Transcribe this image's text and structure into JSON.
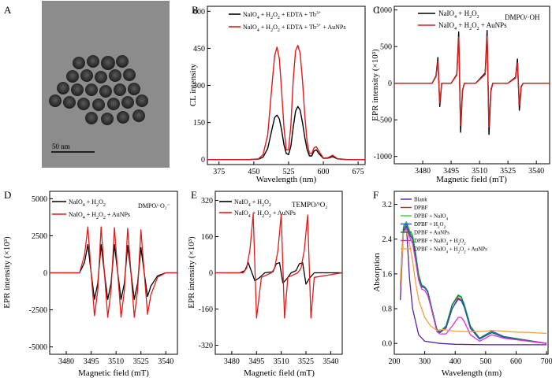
{
  "figure": {
    "panel_letters": [
      "A",
      "B",
      "C",
      "D",
      "E",
      "F"
    ],
    "tem_scale_label": "50 nm"
  },
  "chart_data": [
    {
      "panel": "B",
      "type": "line",
      "xlabel": "Wavelength (nm)",
      "ylabel": "CL intensity",
      "xlim": [
        350,
        690
      ],
      "ylim": [
        -20,
        620
      ],
      "xticks": [
        375,
        450,
        525,
        600,
        675
      ],
      "yticks": [
        0,
        150,
        300,
        450,
        600
      ],
      "legend_position": "top",
      "series": [
        {
          "name": "NaIO4 + H2O2 + EDTA + Tb3+",
          "color": "#000000",
          "x": [
            350,
            440,
            460,
            470,
            480,
            490,
            495,
            500,
            505,
            510,
            515,
            520,
            525,
            530,
            535,
            540,
            545,
            550,
            555,
            560,
            565,
            570,
            575,
            580,
            585,
            590,
            600,
            610,
            620,
            630,
            650,
            690
          ],
          "y": [
            0,
            0,
            2,
            10,
            45,
            130,
            170,
            180,
            165,
            120,
            60,
            25,
            20,
            55,
            130,
            195,
            215,
            200,
            150,
            90,
            40,
            15,
            15,
            35,
            40,
            25,
            5,
            6,
            12,
            3,
            0,
            0
          ]
        },
        {
          "name": "NaIO4 + H2O2 + EDTA + Tb3+ + AuNPs",
          "color": "#e01b1b",
          "x": [
            350,
            440,
            460,
            470,
            480,
            490,
            495,
            500,
            505,
            510,
            515,
            520,
            525,
            530,
            535,
            540,
            545,
            550,
            555,
            560,
            565,
            570,
            575,
            580,
            585,
            590,
            600,
            610,
            620,
            630,
            650,
            690
          ],
          "y": [
            0,
            0,
            3,
            20,
            100,
            320,
            420,
            455,
            410,
            280,
            130,
            40,
            40,
            140,
            320,
            440,
            462,
            430,
            320,
            180,
            70,
            25,
            25,
            48,
            52,
            35,
            6,
            8,
            18,
            4,
            0,
            0
          ]
        }
      ]
    },
    {
      "panel": "C",
      "type": "line",
      "xlabel": "Magnetic field (mT)",
      "ylabel": "EPR intensity (×10³)",
      "xlim": [
        3465,
        3547
      ],
      "ylim": [
        -1100,
        1050
      ],
      "xticks": [
        3480,
        3495,
        3510,
        3525,
        3540
      ],
      "yticks": [
        -1000,
        -500,
        0,
        500,
        1000
      ],
      "annotation": "DMPO/·OH",
      "legend_position": "top-left",
      "series": [
        {
          "name": "NaIO4 + H2O2",
          "color": "#000000",
          "x": [
            3465,
            3485,
            3487,
            3488,
            3489,
            3490,
            3495,
            3498,
            3499,
            3500,
            3501,
            3502,
            3508,
            3513,
            3514,
            3515,
            3516,
            3517,
            3525,
            3529,
            3530,
            3531,
            3532,
            3533,
            3547
          ],
          "y": [
            0,
            0,
            100,
            350,
            -320,
            0,
            0,
            120,
            700,
            -670,
            -100,
            0,
            0,
            140,
            720,
            -700,
            -110,
            0,
            0,
            80,
            330,
            -370,
            -50,
            0,
            0
          ]
        },
        {
          "name": "NaIO4 + H2O2 + AuNPs",
          "color": "#e01b1b",
          "x": [
            3465,
            3485,
            3487,
            3488,
            3489,
            3490,
            3495,
            3498,
            3499,
            3500,
            3501,
            3502,
            3508,
            3513,
            3514,
            3515,
            3516,
            3517,
            3525,
            3529,
            3530,
            3531,
            3532,
            3533,
            3547
          ],
          "y": [
            0,
            0,
            90,
            300,
            -270,
            0,
            0,
            110,
            630,
            -580,
            -90,
            0,
            0,
            120,
            640,
            -600,
            -90,
            0,
            0,
            70,
            280,
            -300,
            -40,
            0,
            0
          ]
        }
      ]
    },
    {
      "panel": "D",
      "type": "line",
      "xlabel": "Magnetic field (mT)",
      "ylabel": "EPR intensity (×10³)",
      "xlim": [
        3470,
        3547
      ],
      "ylim": [
        -5500,
        5500
      ],
      "xticks": [
        3480,
        3495,
        3510,
        3525,
        3540
      ],
      "yticks": [
        -5000,
        -2500,
        0,
        2500,
        5000
      ],
      "annotation": "DMPO/·O₂⁻",
      "legend_position": "top-left",
      "series": [
        {
          "name": "NaIO4 + H2O2",
          "color": "#000000",
          "x": [
            3470,
            3488,
            3491,
            3493,
            3495,
            3497,
            3499,
            3501,
            3503,
            3505,
            3507,
            3509,
            3511,
            3513,
            3515,
            3517,
            3519,
            3521,
            3523,
            3525,
            3527,
            3529,
            3531,
            3535,
            3540,
            3547
          ],
          "y": [
            0,
            0,
            700,
            1900,
            0,
            -1800,
            -700,
            1900,
            0,
            -1800,
            -700,
            1900,
            0,
            -1800,
            -700,
            1850,
            0,
            -1800,
            -700,
            1700,
            0,
            -1600,
            -900,
            -200,
            0,
            0
          ]
        },
        {
          "name": "NaIO4 + H2O2 + AuNPs",
          "color": "#e01b1b",
          "x": [
            3470,
            3488,
            3491,
            3493,
            3495,
            3497,
            3499,
            3501,
            3503,
            3505,
            3507,
            3509,
            3511,
            3513,
            3515,
            3517,
            3519,
            3521,
            3523,
            3525,
            3527,
            3529,
            3531,
            3535,
            3540,
            3547
          ],
          "y": [
            0,
            0,
            1200,
            3100,
            0,
            -2900,
            -1200,
            3100,
            0,
            -3000,
            -1200,
            3050,
            0,
            -3000,
            -1200,
            3000,
            0,
            -3000,
            -1200,
            2900,
            0,
            -2800,
            -1500,
            -300,
            0,
            0
          ]
        }
      ]
    },
    {
      "panel": "E",
      "type": "line",
      "xlabel": "Magnetic field (mT)",
      "ylabel": "EPR intensity (×10³)",
      "xlim": [
        3470,
        3547
      ],
      "ylim": [
        -360,
        360
      ],
      "xticks": [
        3480,
        3495,
        3510,
        3525,
        3540
      ],
      "yticks": [
        -320,
        -160,
        0,
        160,
        320
      ],
      "annotation": "TEMPO/¹O₂",
      "legend_position": "top-left",
      "series": [
        {
          "name": "NaIO4 + H2O2",
          "color": "#000000",
          "x": [
            3470,
            3485,
            3488,
            3490,
            3492,
            3494,
            3497,
            3500,
            3505,
            3507,
            3509,
            3511,
            3513,
            3516,
            3519,
            3521,
            3523,
            3525,
            3527,
            3530,
            3547
          ],
          "y": [
            0,
            0,
            10,
            45,
            5,
            -35,
            -20,
            0,
            5,
            40,
            45,
            -45,
            -30,
            0,
            10,
            40,
            45,
            -50,
            -25,
            0,
            0
          ]
        },
        {
          "name": "NaIO4 + H2O2 + AuNPs",
          "color": "#e01b1b",
          "x": [
            3470,
            3487,
            3489,
            3491,
            3493,
            3495,
            3498,
            3504,
            3506,
            3508,
            3510,
            3512,
            3514,
            3520,
            3522,
            3524,
            3526,
            3528,
            3530,
            3547
          ],
          "y": [
            0,
            0,
            20,
            100,
            260,
            -200,
            -20,
            0,
            20,
            100,
            260,
            -200,
            -20,
            0,
            20,
            100,
            255,
            -200,
            -20,
            0
          ]
        }
      ]
    },
    {
      "panel": "F",
      "type": "line",
      "xlabel": "Wavelength (nm)",
      "ylabel": "Absorption",
      "xlim": [
        200,
        705
      ],
      "ylim": [
        -0.25,
        3.5
      ],
      "xticks": [
        200,
        300,
        400,
        500,
        600,
        700
      ],
      "yticks": [
        0.0,
        0.8,
        1.6,
        2.4,
        3.2
      ],
      "legend_position": "top",
      "series": [
        {
          "name": "Blank",
          "color": "#5a1fa0",
          "x": [
            220,
            230,
            240,
            250,
            260,
            280,
            300,
            350,
            400,
            500,
            700
          ],
          "y": [
            1.0,
            2.6,
            2.7,
            1.5,
            0.8,
            0.2,
            0.05,
            0.0,
            -0.02,
            -0.03,
            -0.03
          ]
        },
        {
          "name": "DPBF",
          "color": "#e01b1b",
          "x": [
            220,
            230,
            240,
            250,
            260,
            270,
            280,
            290,
            300,
            310,
            320,
            340,
            350,
            370,
            390,
            410,
            420,
            430,
            450,
            480,
            520,
            560,
            700
          ],
          "y": [
            1.3,
            2.6,
            2.7,
            2.5,
            2.4,
            2.0,
            1.5,
            1.3,
            1.3,
            1.2,
            0.9,
            0.3,
            0.25,
            0.35,
            0.8,
            1.05,
            1.0,
            0.85,
            0.35,
            0.1,
            0.25,
            0.15,
            0.0
          ]
        },
        {
          "name": "DPBF + NaIO4",
          "color": "#2fcf2f",
          "x": [
            220,
            230,
            240,
            250,
            260,
            270,
            280,
            290,
            300,
            310,
            320,
            340,
            350,
            370,
            390,
            410,
            420,
            430,
            450,
            480,
            520,
            560,
            700
          ],
          "y": [
            1.4,
            2.7,
            2.8,
            2.6,
            2.5,
            2.1,
            1.6,
            1.35,
            1.3,
            1.2,
            0.9,
            0.32,
            0.27,
            0.4,
            0.9,
            1.12,
            1.08,
            0.9,
            0.4,
            0.12,
            0.28,
            0.15,
            0.0
          ]
        },
        {
          "name": "DPBF + H2O2",
          "color": "#1f4fd6",
          "x": [
            220,
            230,
            240,
            250,
            260,
            270,
            280,
            290,
            300,
            310,
            320,
            340,
            350,
            370,
            390,
            410,
            420,
            430,
            450,
            480,
            520,
            560,
            700
          ],
          "y": [
            1.3,
            2.6,
            2.7,
            2.5,
            2.4,
            2.0,
            1.5,
            1.3,
            1.28,
            1.18,
            0.88,
            0.3,
            0.25,
            0.36,
            0.8,
            1.02,
            0.98,
            0.83,
            0.35,
            0.1,
            0.25,
            0.14,
            0.0
          ]
        },
        {
          "name": "DPBF + AuNPs",
          "color": "#1a7a55",
          "x": [
            220,
            230,
            240,
            250,
            260,
            270,
            280,
            290,
            300,
            310,
            320,
            340,
            350,
            370,
            390,
            410,
            420,
            430,
            450,
            480,
            520,
            560,
            700
          ],
          "y": [
            1.35,
            2.65,
            2.75,
            2.55,
            2.45,
            2.05,
            1.55,
            1.32,
            1.3,
            1.2,
            0.9,
            0.32,
            0.27,
            0.4,
            0.88,
            1.1,
            1.06,
            0.88,
            0.4,
            0.12,
            0.28,
            0.16,
            0.0
          ]
        },
        {
          "name": "DPBF + NaIO4 + H2O2",
          "color": "#e02be0",
          "x": [
            220,
            230,
            240,
            250,
            260,
            270,
            280,
            290,
            300,
            310,
            320,
            340,
            350,
            370,
            390,
            410,
            420,
            430,
            450,
            480,
            520,
            560,
            700
          ],
          "y": [
            1.3,
            2.55,
            2.65,
            2.45,
            2.3,
            1.9,
            1.45,
            1.25,
            1.22,
            1.1,
            0.85,
            0.27,
            0.22,
            0.22,
            0.4,
            0.6,
            0.6,
            0.5,
            0.2,
            0.05,
            0.2,
            0.12,
            0.0
          ]
        },
        {
          "name": "DPBF + NaIO4 + H2O2 + AuNPs",
          "color": "#f0a040",
          "x": [
            220,
            230,
            240,
            250,
            260,
            270,
            280,
            300,
            320,
            340,
            360,
            380,
            400,
            450,
            500,
            520,
            560,
            600,
            650,
            700
          ],
          "y": [
            1.3,
            2.55,
            2.6,
            2.3,
            1.9,
            1.4,
            1.0,
            0.6,
            0.4,
            0.3,
            0.32,
            0.3,
            0.28,
            0.27,
            0.28,
            0.3,
            0.28,
            0.26,
            0.25,
            0.23
          ]
        }
      ]
    }
  ]
}
